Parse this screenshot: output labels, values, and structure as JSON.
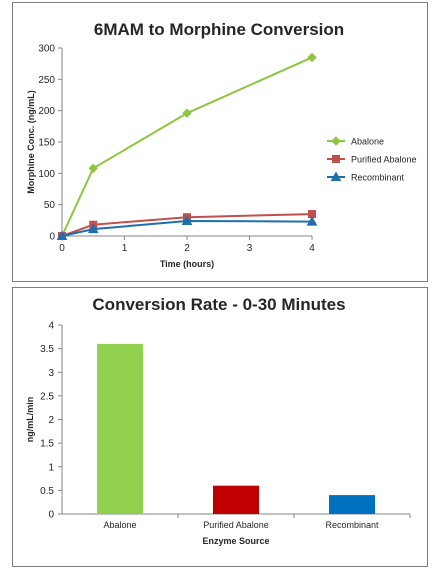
{
  "chart_data": [
    {
      "type": "line",
      "title": "6MAM to Morphine Conversion",
      "xlabel": "Time (hours)",
      "ylabel": "Morphine Conc. (ng/mL)",
      "xlim": [
        0,
        4
      ],
      "ylim": [
        0,
        300
      ],
      "xticks": [
        "0",
        "1",
        "2",
        "3",
        "4"
      ],
      "yticks": [
        "0",
        "50",
        "100",
        "150",
        "200",
        "250",
        "300"
      ],
      "grid": false,
      "legend_position": "right",
      "series": [
        {
          "name": "Abalone",
          "color": "#8dc63f",
          "marker": "diamond",
          "x": [
            0,
            0.5,
            2,
            4
          ],
          "y": [
            0,
            108,
            196,
            285
          ]
        },
        {
          "name": "Purified Abalone",
          "color": "#c0504d",
          "marker": "square",
          "x": [
            0,
            0.5,
            2,
            4
          ],
          "y": [
            0,
            18,
            30,
            35
          ]
        },
        {
          "name": "Recombinant",
          "color": "#1f6fad",
          "marker": "triangle",
          "x": [
            0,
            0.5,
            2,
            4
          ],
          "y": [
            0,
            11,
            24,
            23
          ]
        }
      ]
    },
    {
      "type": "bar",
      "title": "Conversion Rate - 0-30 Minutes",
      "xlabel": "Enzyme Source",
      "ylabel": "ng/mL/min",
      "ylim": [
        0,
        4
      ],
      "yticks": [
        "0",
        "0.5",
        "1",
        "1.5",
        "2",
        "2.5",
        "3",
        "3.5",
        "4"
      ],
      "grid": false,
      "categories": [
        "Abalone",
        "Purified Abalone",
        "Recombinant"
      ],
      "values": [
        3.6,
        0.6,
        0.4
      ],
      "colors": [
        "#92d050",
        "#c00000",
        "#0070c0"
      ]
    }
  ]
}
